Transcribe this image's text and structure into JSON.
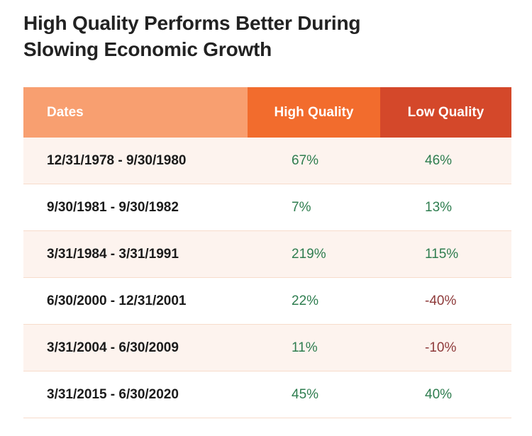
{
  "title": {
    "line1": "High Quality Performs Better During",
    "line2": "Slowing Economic Growth"
  },
  "table": {
    "headers": {
      "dates": "Dates",
      "high_quality": "High Quality",
      "low_quality": "Low Quality"
    },
    "rows": [
      {
        "dates": "12/31/1978 - 9/30/1980",
        "high_quality": "67%",
        "low_quality": "46%"
      },
      {
        "dates": "9/30/1981 - 9/30/1982",
        "high_quality": "7%",
        "low_quality": "13%"
      },
      {
        "dates": "3/31/1984 - 3/31/1991",
        "high_quality": "219%",
        "low_quality": "115%"
      },
      {
        "dates": "6/30/2000 - 12/31/2001",
        "high_quality": "22%",
        "low_quality": "-40%"
      },
      {
        "dates": "3/31/2004 - 6/30/2009",
        "high_quality": "11%",
        "low_quality": "-10%"
      },
      {
        "dates": "3/31/2015 - 6/30/2020",
        "high_quality": "45%",
        "low_quality": "40%"
      }
    ]
  },
  "colors": {
    "header_dates_bg": "#f89f70",
    "header_high_bg": "#f26c2d",
    "header_low_bg": "#d4482a",
    "positive_text": "#2e7d4f",
    "negative_text": "#8e3a3a",
    "row_shade": "#fdf3ee"
  }
}
